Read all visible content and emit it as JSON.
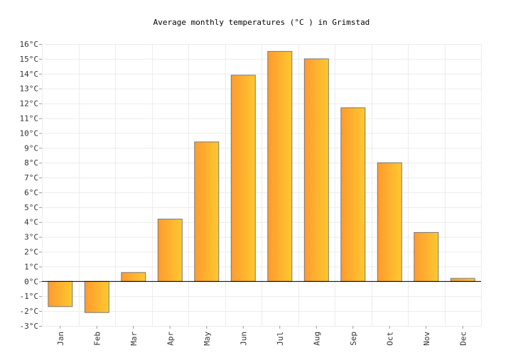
{
  "chart_data": {
    "type": "bar",
    "title": "Average monthly temperatures (°C ) in Grimstad",
    "categories": [
      "Jan",
      "Feb",
      "Mar",
      "Apr",
      "May",
      "Jun",
      "Jul",
      "Aug",
      "Sep",
      "Oct",
      "Nov",
      "Dec"
    ],
    "values": [
      -1.7,
      -2.1,
      0.6,
      4.2,
      9.4,
      13.9,
      15.5,
      15.0,
      11.7,
      8.0,
      3.3,
      0.2
    ],
    "ylim": [
      -3,
      16
    ],
    "yticks": [
      -3,
      -2,
      -1,
      0,
      1,
      2,
      3,
      4,
      5,
      6,
      7,
      8,
      9,
      10,
      11,
      12,
      13,
      14,
      15,
      16
    ],
    "tick_suffix": "°C",
    "xlabel": "",
    "ylabel": "",
    "grid": true,
    "colors": {
      "bar_left": "#ff9a2f",
      "bar_right": "#ffc92f",
      "bar_stroke": "#777777",
      "grid": "#ececec",
      "axis": "#000000"
    }
  }
}
